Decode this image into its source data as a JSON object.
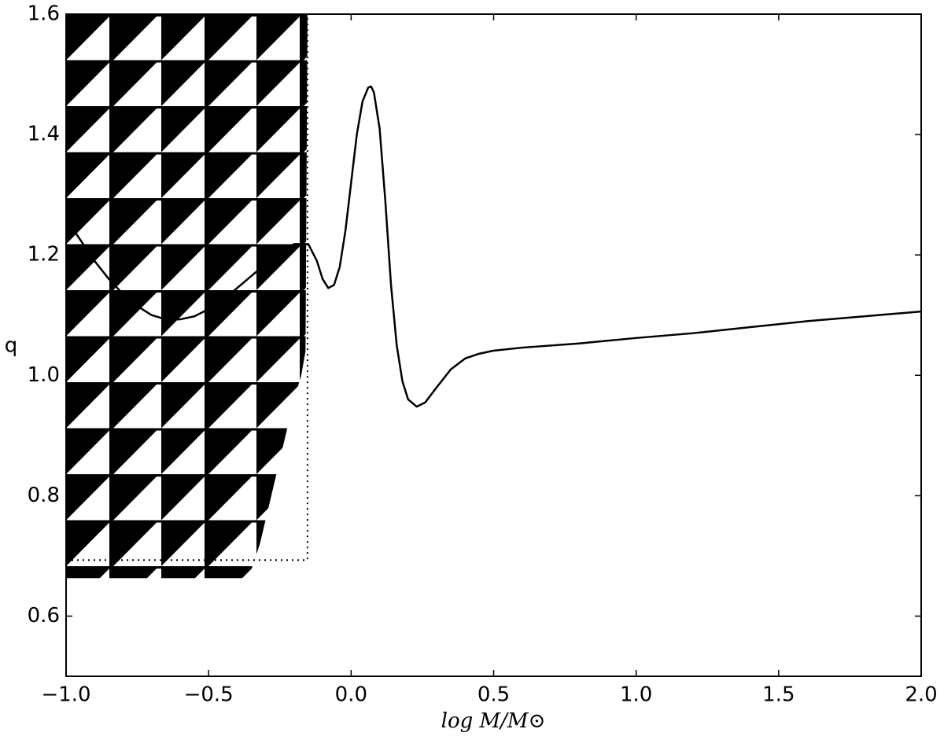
{
  "chart_data": {
    "type": "line",
    "xlabel": "log M/M⊙",
    "ylabel": "q",
    "xlim": [
      -1,
      2
    ],
    "ylim": [
      0.5,
      1.6
    ],
    "xticks": [
      {
        "value": -1,
        "label": "−1.0"
      },
      {
        "value": -0.5,
        "label": "−0.5"
      },
      {
        "value": 0,
        "label": "0.0"
      },
      0.5,
      {
        "value": 1,
        "label": "1.0"
      },
      1.5,
      {
        "value": 2,
        "label": "2.0"
      }
    ],
    "yticks": [
      0.6,
      0.8,
      {
        "value": 1,
        "label": "1.0"
      },
      1.2,
      1.4,
      1.6
    ],
    "grid": false,
    "series": [
      {
        "color": "#000000",
        "style": "solid",
        "x": [
          -1.0,
          -0.95,
          -0.9,
          -0.85,
          -0.8,
          -0.75,
          -0.7,
          -0.65,
          -0.6,
          -0.55,
          -0.5,
          -0.45,
          -0.4,
          -0.35,
          -0.3,
          -0.25,
          -0.2,
          -0.15,
          -0.12,
          -0.1,
          -0.08,
          -0.06,
          -0.04,
          -0.02,
          0.0,
          0.02,
          0.04,
          0.06,
          0.07,
          0.08,
          0.1,
          0.12,
          0.14,
          0.16,
          0.18,
          0.2,
          0.23,
          0.26,
          0.3,
          0.35,
          0.4,
          0.45,
          0.5,
          0.6,
          0.8,
          1.0,
          1.2,
          1.4,
          1.6,
          1.8,
          2.0
        ],
        "values": [
          1.26,
          1.225,
          1.19,
          1.16,
          1.135,
          1.115,
          1.1,
          1.093,
          1.093,
          1.098,
          1.11,
          1.125,
          1.145,
          1.165,
          1.185,
          1.205,
          1.218,
          1.218,
          1.19,
          1.16,
          1.145,
          1.15,
          1.18,
          1.24,
          1.32,
          1.4,
          1.455,
          1.478,
          1.48,
          1.47,
          1.41,
          1.29,
          1.15,
          1.05,
          0.99,
          0.96,
          0.948,
          0.955,
          0.98,
          1.01,
          1.028,
          1.036,
          1.041,
          1.046,
          1.053,
          1.062,
          1.07,
          1.08,
          1.09,
          1.098,
          1.106
        ]
      },
      {
        "color": "#000000",
        "style": "dotted",
        "x": [
          -1.0,
          -0.153,
          -0.153
        ],
        "values": [
          0.693,
          0.693,
          1.6
        ]
      },
      {
        "color": "#000000",
        "style": "hatch",
        "x": [
          -1.0,
          -0.36,
          -0.32,
          -0.28,
          -0.24,
          -0.2,
          -0.175,
          -0.16,
          -0.153,
          -1.0
        ],
        "values": [
          0.663,
          0.663,
          0.72,
          0.8,
          0.88,
          0.96,
          1.0,
          1.04,
          1.6,
          1.6
        ]
      }
    ]
  }
}
